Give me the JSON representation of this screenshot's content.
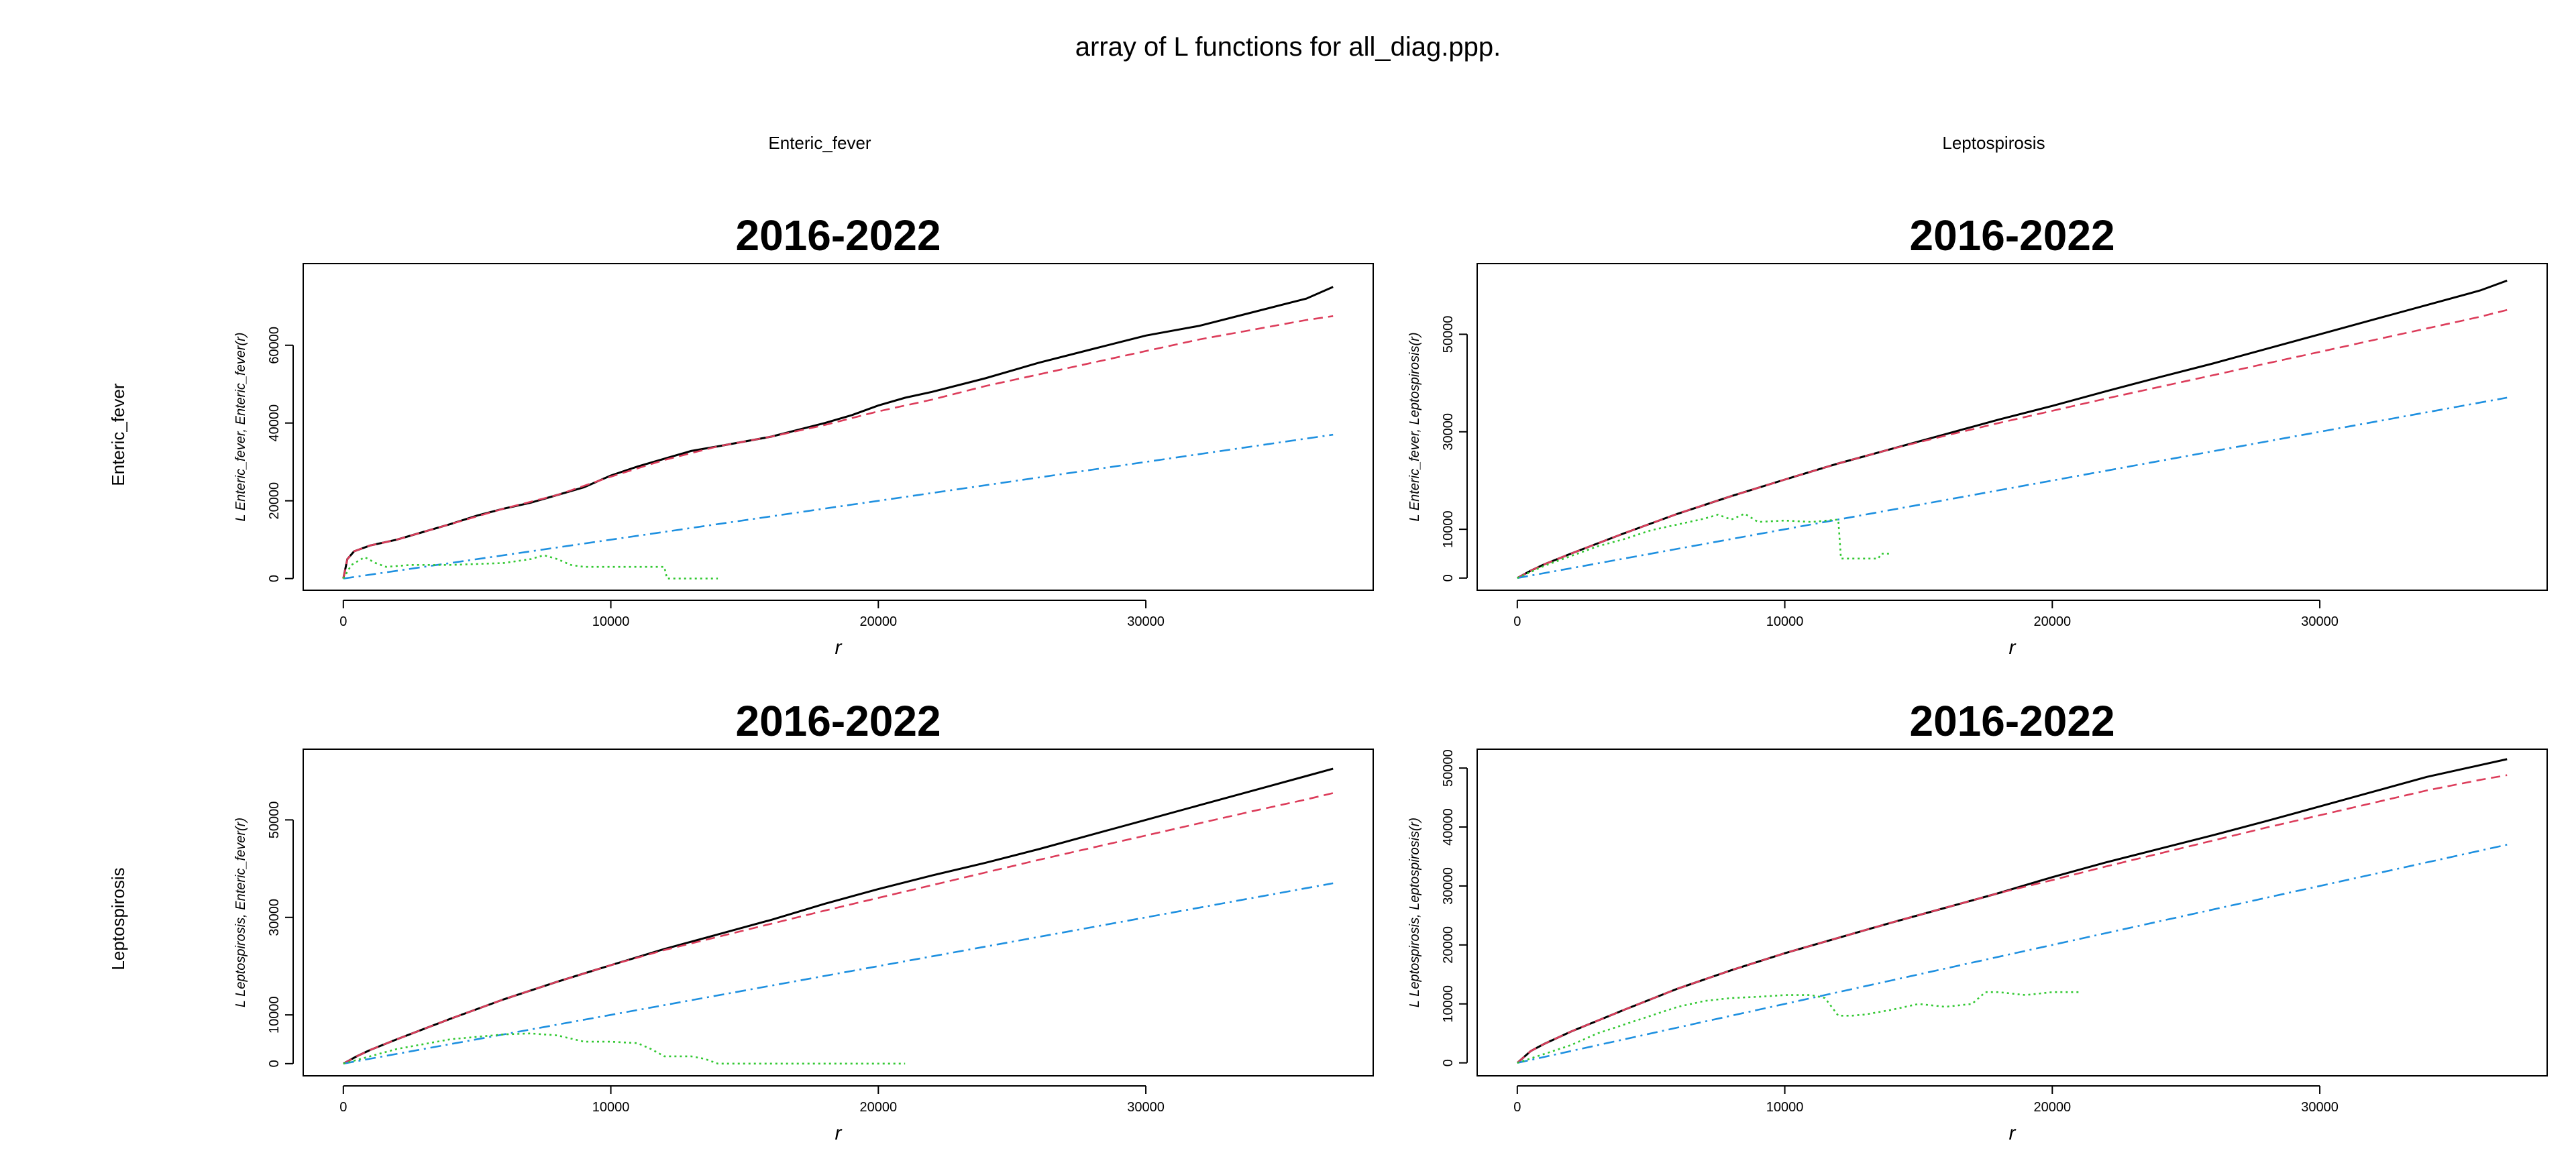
{
  "main_title": "array of L functions for all_diag.ppp.",
  "column_labels": [
    "Enteric_fever",
    "Leptospirosis"
  ],
  "row_labels": [
    "Enteric_fever",
    "Leptospirosis"
  ],
  "colors": {
    "obs": "#000000",
    "theo": "#dc3c5a",
    "iso": "#1e90e0",
    "trans": "#32c832"
  },
  "chart_data": [
    {
      "type": "line",
      "title": "2016-2022",
      "xlabel": "r",
      "ylabel": "L Enteric_fever, Enteric_fever(r)",
      "xticks": [
        0,
        10000,
        20000,
        30000
      ],
      "yticks": [
        0,
        20000,
        40000,
        60000
      ],
      "xlim": [
        -1500,
        38500
      ],
      "ylim": [
        -3000,
        81000
      ],
      "series": [
        {
          "name": "obs",
          "style": "solid",
          "x": [
            0,
            150,
            400,
            1000,
            2000,
            3000,
            4000,
            5000,
            6000,
            7000,
            8000,
            9000,
            10000,
            11000,
            12000,
            13000,
            14000,
            16000,
            18000,
            19000,
            20000,
            21000,
            22000,
            24000,
            26000,
            28000,
            30000,
            32000,
            34000,
            36000,
            37000
          ],
          "y": [
            0,
            5000,
            7000,
            8500,
            10000,
            12000,
            14000,
            16200,
            18000,
            19500,
            21500,
            23500,
            26500,
            28800,
            30800,
            32800,
            34000,
            36500,
            40000,
            42000,
            44500,
            46500,
            48000,
            51500,
            55500,
            59000,
            62500,
            65000,
            68500,
            72000,
            75000
          ]
        },
        {
          "name": "theo",
          "style": "dashed",
          "x": [
            0,
            150,
            400,
            1000,
            2000,
            4000,
            6000,
            8000,
            10000,
            12000,
            14000,
            16000,
            18000,
            20000,
            22000,
            24000,
            26000,
            28000,
            30000,
            32000,
            34000,
            36000,
            37000
          ],
          "y": [
            0,
            5000,
            7000,
            8500,
            10000,
            14000,
            18000,
            21500,
            26200,
            30500,
            34000,
            36500,
            39500,
            43000,
            46000,
            49500,
            52500,
            55500,
            58500,
            61500,
            64000,
            66500,
            67500
          ]
        },
        {
          "name": "iso",
          "style": "dashdot",
          "x": [
            0,
            37000
          ],
          "y": [
            0,
            37000
          ]
        },
        {
          "name": "trans",
          "style": "dotted",
          "x": [
            0,
            300,
            800,
            1200,
            1600,
            2500,
            4000,
            6000,
            7000,
            7500,
            8000,
            8500,
            9000,
            10000,
            11000,
            12000,
            12100,
            14000
          ],
          "y": [
            0,
            3500,
            5500,
            4000,
            3000,
            3500,
            3500,
            4000,
            5000,
            6000,
            5000,
            3500,
            3000,
            3000,
            3000,
            3000,
            0,
            0
          ]
        }
      ]
    },
    {
      "type": "line",
      "title": "2016-2022",
      "xlabel": "r",
      "ylabel": "L Enteric_fever, Leptospirosis(r)",
      "xticks": [
        0,
        10000,
        20000,
        30000
      ],
      "yticks": [
        0,
        10000,
        30000,
        50000
      ],
      "xlim": [
        -1500,
        38500
      ],
      "ylim": [
        -2500,
        64500
      ],
      "series": [
        {
          "name": "obs",
          "style": "solid",
          "x": [
            0,
            500,
            1000,
            2000,
            4000,
            6000,
            8000,
            10000,
            12000,
            14000,
            16000,
            18000,
            20000,
            22000,
            24000,
            26000,
            28000,
            30000,
            32000,
            34000,
            36000,
            37000
          ],
          "y": [
            0,
            1500,
            2800,
            5000,
            9200,
            13200,
            16800,
            20200,
            23500,
            26500,
            29500,
            32500,
            35300,
            38300,
            41200,
            44000,
            47000,
            50000,
            53000,
            56000,
            59000,
            61000
          ]
        },
        {
          "name": "theo",
          "style": "dashed",
          "x": [
            0,
            500,
            1000,
            2000,
            4000,
            6000,
            8000,
            10000,
            12000,
            14000,
            16000,
            18000,
            20000,
            22000,
            24000,
            26000,
            28000,
            30000,
            32000,
            34000,
            36000,
            37000
          ],
          "y": [
            0,
            1500,
            2800,
            5000,
            9200,
            13200,
            16800,
            20200,
            23500,
            26500,
            29200,
            31800,
            34300,
            36800,
            39200,
            41600,
            44000,
            46400,
            48800,
            51200,
            53600,
            55000
          ]
        },
        {
          "name": "iso",
          "style": "dashdot",
          "x": [
            0,
            37000
          ],
          "y": [
            0,
            37000
          ]
        },
        {
          "name": "trans",
          "style": "dotted",
          "x": [
            0,
            1000,
            2000,
            3000,
            4000,
            5000,
            6000,
            7000,
            7500,
            8000,
            8500,
            9000,
            10000,
            11000,
            12000,
            12100,
            13500,
            13600,
            14000
          ],
          "y": [
            0,
            2500,
            4500,
            6500,
            8000,
            9800,
            11000,
            12200,
            13000,
            12000,
            13200,
            11500,
            11800,
            11500,
            12000,
            4000,
            4000,
            5000,
            5000
          ]
        }
      ]
    },
    {
      "type": "line",
      "title": "2016-2022",
      "xlabel": "r",
      "ylabel": "L Leptospirosis, Enteric_fever(r)",
      "xticks": [
        0,
        10000,
        20000,
        30000
      ],
      "yticks": [
        0,
        10000,
        30000,
        50000
      ],
      "xlim": [
        -1500,
        38500
      ],
      "ylim": [
        -2500,
        64500
      ],
      "series": [
        {
          "name": "obs",
          "style": "solid",
          "x": [
            0,
            500,
            1000,
            2000,
            4000,
            6000,
            8000,
            10000,
            12000,
            14000,
            16000,
            18000,
            20000,
            22000,
            24000,
            26000,
            28000,
            30000,
            32000,
            34000,
            36000,
            37000
          ],
          "y": [
            0,
            1500,
            2800,
            5000,
            9200,
            13200,
            16800,
            20200,
            23500,
            26500,
            29500,
            32800,
            35800,
            38600,
            41200,
            44000,
            47000,
            50000,
            53000,
            56000,
            59000,
            60500
          ]
        },
        {
          "name": "theo",
          "style": "dashed",
          "x": [
            0,
            500,
            1000,
            2000,
            4000,
            6000,
            8000,
            10000,
            12000,
            14000,
            16000,
            18000,
            20000,
            22000,
            24000,
            26000,
            28000,
            30000,
            32000,
            34000,
            36000,
            37000
          ],
          "y": [
            0,
            1500,
            2800,
            5000,
            9200,
            13200,
            16800,
            20200,
            23300,
            26000,
            28700,
            31400,
            34000,
            36600,
            39200,
            41800,
            44300,
            46800,
            49300,
            51800,
            54200,
            55500
          ]
        },
        {
          "name": "iso",
          "style": "dashdot",
          "x": [
            0,
            37000
          ],
          "y": [
            0,
            37000
          ]
        },
        {
          "name": "trans",
          "style": "dotted",
          "x": [
            0,
            1000,
            2000,
            4000,
            6000,
            7000,
            8000,
            9000,
            10000,
            11000,
            11500,
            12000,
            13000,
            13500,
            14000,
            15000,
            17000,
            20000,
            21000
          ],
          "y": [
            0,
            1500,
            3000,
            5000,
            6000,
            6200,
            5800,
            4500,
            4500,
            4200,
            3000,
            1500,
            1500,
            1000,
            0,
            0,
            0,
            0,
            0
          ]
        }
      ]
    },
    {
      "type": "line",
      "title": "2016-2022",
      "xlabel": "r",
      "ylabel": "L Leptospirosis, Leptospirosis(r)",
      "xticks": [
        0,
        10000,
        20000,
        30000
      ],
      "yticks": [
        0,
        10000,
        20000,
        30000,
        40000,
        50000
      ],
      "xlim": [
        -1500,
        38500
      ],
      "ylim": [
        -2200,
        53200
      ],
      "series": [
        {
          "name": "obs",
          "style": "solid",
          "x": [
            0,
            500,
            1000,
            2000,
            4000,
            6000,
            8000,
            10000,
            12000,
            14000,
            16000,
            18000,
            20000,
            22000,
            24000,
            26000,
            28000,
            30000,
            32000,
            34000,
            36000,
            37000
          ],
          "y": [
            0,
            2000,
            3200,
            5300,
            9000,
            12600,
            15700,
            18600,
            21200,
            23800,
            26300,
            28800,
            31500,
            34000,
            36300,
            38600,
            41000,
            43500,
            46000,
            48500,
            50500,
            51500
          ]
        },
        {
          "name": "theo",
          "style": "dashed",
          "x": [
            0,
            500,
            1000,
            2000,
            4000,
            6000,
            8000,
            10000,
            12000,
            14000,
            16000,
            18000,
            20000,
            22000,
            24000,
            26000,
            28000,
            30000,
            32000,
            34000,
            36000,
            37000
          ],
          "y": [
            0,
            2000,
            3200,
            5300,
            9000,
            12600,
            15700,
            18600,
            21200,
            23800,
            26300,
            28800,
            31000,
            33300,
            35500,
            37700,
            39900,
            42000,
            44100,
            46200,
            48000,
            48800
          ]
        },
        {
          "name": "iso",
          "style": "dashdot",
          "x": [
            0,
            37000
          ],
          "y": [
            0,
            37000
          ]
        },
        {
          "name": "trans",
          "style": "dotted",
          "x": [
            0,
            1000,
            2000,
            3000,
            4000,
            5000,
            6000,
            7000,
            8000,
            9000,
            10000,
            11000,
            11500,
            12000,
            12500,
            13000,
            14000,
            15000,
            16000,
            17000,
            17500,
            18000,
            19000,
            20000,
            21000
          ],
          "y": [
            0,
            1500,
            3000,
            5000,
            6500,
            8000,
            9500,
            10500,
            11000,
            11200,
            11500,
            11500,
            11000,
            8000,
            8000,
            8200,
            9000,
            10000,
            9500,
            10000,
            12000,
            12000,
            11500,
            12000,
            12000
          ]
        }
      ]
    }
  ]
}
